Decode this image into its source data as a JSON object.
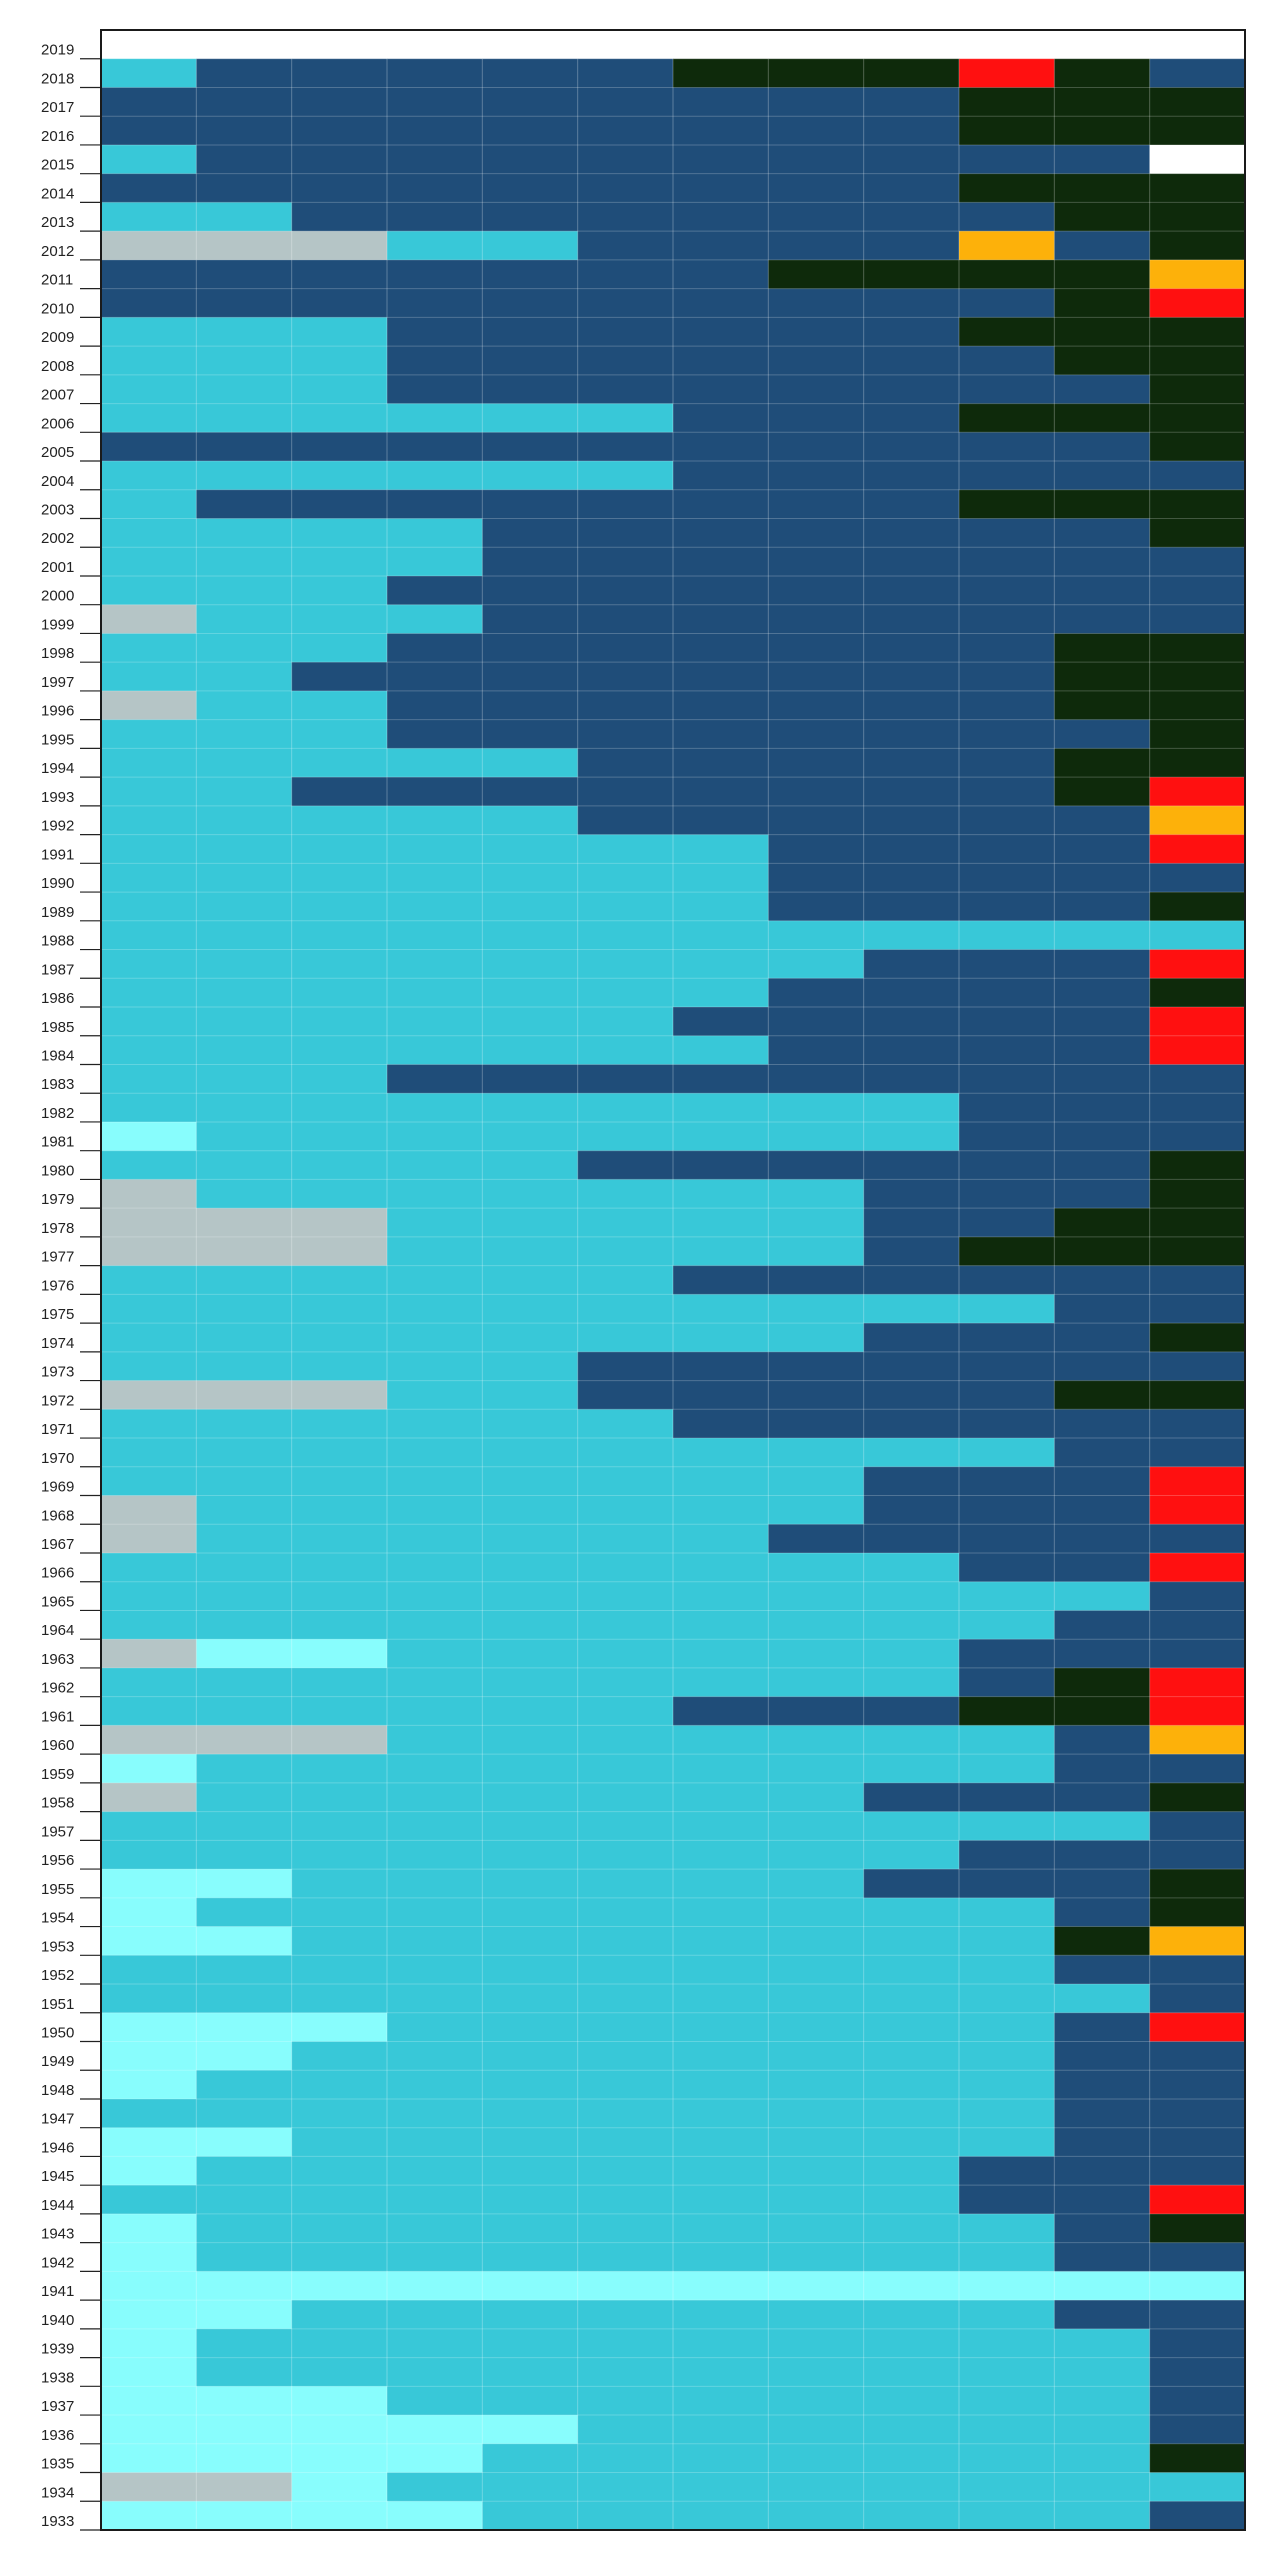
{
  "chart_data": {
    "type": "heatmap",
    "title": "",
    "xlabel": "",
    "ylabel": "",
    "years": [
      2019,
      2018,
      2017,
      2016,
      2015,
      2014,
      2013,
      2012,
      2011,
      2010,
      2009,
      2008,
      2007,
      2006,
      2005,
      2004,
      2003,
      2002,
      2001,
      2000,
      1999,
      1998,
      1997,
      1996,
      1995,
      1994,
      1993,
      1992,
      1991,
      1990,
      1989,
      1988,
      1987,
      1986,
      1985,
      1984,
      1983,
      1982,
      1981,
      1980,
      1979,
      1978,
      1977,
      1976,
      1975,
      1974,
      1973,
      1972,
      1971,
      1970,
      1969,
      1968,
      1967,
      1966,
      1965,
      1964,
      1963,
      1962,
      1961,
      1960,
      1959,
      1958,
      1957,
      1956,
      1955,
      1954,
      1953,
      1952,
      1951,
      1950,
      1949,
      1948,
      1947,
      1946,
      1945,
      1944,
      1943,
      1942,
      1941,
      1940,
      1939,
      1938,
      1937,
      1936,
      1935,
      1934,
      1933
    ],
    "column_count": 12,
    "palette": {
      "L": "#88fdfd",
      "C": "#38c8d8",
      "B": "#1f4d79",
      "K": "#0e2a0b",
      "R": "#ff1010",
      "O": "#fdb10a",
      "W": "#ffffff",
      "G": "#b5c5c6"
    },
    "rows": [
      "............",
      "CBBBBBKKKRKB",
      "BBBBBBBBBKKK",
      "BBBBBBBBBKKK",
      "CBBBBBBBBBBW",
      "BBBBBBBBBKKK",
      "CCBBBBBBBBKK",
      "GGGCCBBBBOBK",
      "BBBBBBBKKKKO",
      "BBBBBBBBBBKR",
      "CCCBBBBBBKKK",
      "CCCBBBBBBBKK",
      "CCCBBBBBBBBK",
      "CCCCCCBBBKKK",
      "BBBBBBBBBBBK",
      "CCCCCCBBBBBB",
      "CBBBBBBBBKKK",
      "CCCCBBBBBBBK",
      "CCCCBBBBBBBB",
      "CCCBBBBBBBBB",
      "GCCCBBBBBBBB",
      "CCCBBBBBBBKK",
      "CCBBBBBBBBKK",
      "GCCBBBBBBBKK",
      "CCCBBBBBBBBK",
      "CCCCCBBBBBKK",
      "CCBBBBBBBBKR",
      "CCCCCBBBBBBO",
      "CCCCCCCBBBBR",
      "CCCCCCCBBBBB",
      "CCCCCCCBBBBK",
      "CCCCCCCCCCCC",
      "CCCCCCCCBBBR",
      "CCCCCCCBBBBK",
      "CCCCCCBBBBBR",
      "CCCCCCCBBBBR",
      "CCCBBBBBBBBB",
      "CCCCCCCCCBBB",
      "LCCCCCCCCBBB",
      "CCCCCBBBBBBK",
      "GCCCCCCCBBBK",
      "GGGCCCCCBBKK",
      "GGGCCCCCBKKK",
      "CCCCCCBBBBBB",
      "CCCCCCCCCCBB",
      "CCCCCCCCBBBK",
      "CCCCCBBBBBBB",
      "GGGCCBBBBBKK",
      "CCCCCCBBBBBB",
      "CCCCCCCCCCBB",
      "CCCCCCCCBBBR",
      "GCCCCCCCBBBR",
      "GCCCCCCBBBBB",
      "CCCCCCCCCBBR",
      "CCCCCCCCCCCB",
      "CCCCCCCCCCBB",
      "GLLCCCCCCBBB",
      "CCCCCCCCCBKR",
      "CCCCCCBBBKKR",
      "GGGCCCCCCCBO",
      "LCCCCCCCCCBB",
      "GCCCCCCCBBBK",
      "CCCCCCCCCCCB",
      "CCCCCCCCCBBB",
      "LLCCCCCCBBBK",
      "LCCCCCCCCCBK",
      "LLCCCCCCCCKO",
      "CCCCCCCCCCBB",
      "CCCCCCCCCCCB",
      "LLLCCCCCCCBR",
      "LLCCCCCCCCBB",
      "LCCCCCCCCCBB",
      "CCCCCCCCCCBB",
      "LLCCCCCCCCBB",
      "LCCCCCCCCBBB",
      "CCCCCCCCCBBR",
      "LCCCCCCCCCBK",
      "LCCCCCCCCCBB",
      "LLLLLLLLLLLL",
      "LLCCCCCCCCBB",
      "LCCCCCCCCCCB",
      "LCCCCCCCCCCB",
      "LLLCCCCCCCCB",
      "LLLLLCCCCCCB",
      "LLLLCCCCCCCK",
      "GGLCCCCCCCCC",
      "LLLLCCCCCCCB"
    ]
  }
}
